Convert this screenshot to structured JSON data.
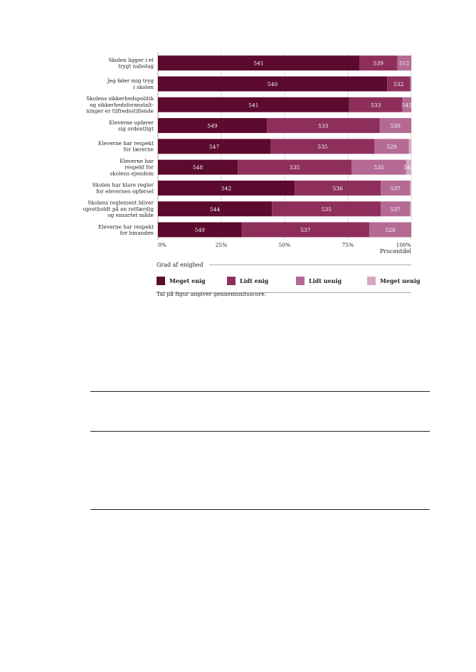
{
  "chart_data": {
    "type": "bar",
    "orientation": "horizontal",
    "stacked": true,
    "categories": [
      "Skolen ligger i et\ntrygt nabolag",
      "Jeg føler mig tryg\ni skolen",
      "Skolens sikkerhedspolitik\nog sikkerhedsforanstalt-\nninger er tilfredsstillende",
      "Eleverne opfører\nsig ordentligt",
      "Eleverne har respekt\nfor lærerne",
      "Eleverne har\nrespekt for\nskolens ejendom",
      "Skolen har klare regler\nfor elevernes opførsel",
      "Skolens reglement bliver\nopretholdt på en retfærdig\nog ensartet måde",
      "Eleverne har respekt\nfor hinanden"
    ],
    "series": [
      {
        "name": "Meget enig",
        "color": "#5c0a2e",
        "values": [
          79.5,
          90.5,
          75.5,
          43,
          44.5,
          31.5,
          54,
          45,
          33
        ],
        "labels": [
          "541",
          "540",
          "541",
          "549",
          "547",
          "548",
          "542",
          "544",
          "549"
        ]
      },
      {
        "name": "Lidt enig",
        "color": "#8e2f5b",
        "values": [
          15,
          9,
          21,
          44.5,
          41,
          45,
          34,
          43,
          50.5
        ],
        "labels": [
          "539",
          "532",
          "533",
          "533",
          "535",
          "535",
          "536",
          "535",
          "537"
        ]
      },
      {
        "name": "Lidt uenig",
        "color": "#b46a93",
        "values": [
          5.5,
          0.5,
          3.5,
          12.5,
          13.5,
          21.5,
          11.5,
          11.5,
          16.5
        ],
        "labels": [
          "512",
          "",
          "542",
          "530",
          "529",
          "535",
          "537",
          "537",
          "528"
        ]
      },
      {
        "name": "Meget uenig",
        "color": "#d7a6c1",
        "values": [
          0,
          0,
          0,
          0,
          1,
          2,
          0.5,
          0.5,
          0
        ],
        "labels": [
          "",
          "",
          "",
          "",
          "",
          "543",
          "",
          "",
          ""
        ]
      }
    ],
    "xlim": [
      0,
      100
    ],
    "xticks": [
      "0%",
      "25%",
      "50%",
      "75%",
      "100%"
    ],
    "xlabel": "Procentdel",
    "grid": true
  },
  "legend": {
    "title": "Grad af enighed",
    "items": [
      {
        "label": "Meget enig",
        "color": "#5c0a2e"
      },
      {
        "label": "Lidt enig",
        "color": "#8e2f5b"
      },
      {
        "label": "Lidt uenig",
        "color": "#b46a93"
      },
      {
        "label": "Meget uenig",
        "color": "#d7a6c1"
      }
    ]
  },
  "note": "Tal på figur angiver gennemsnitsscore."
}
